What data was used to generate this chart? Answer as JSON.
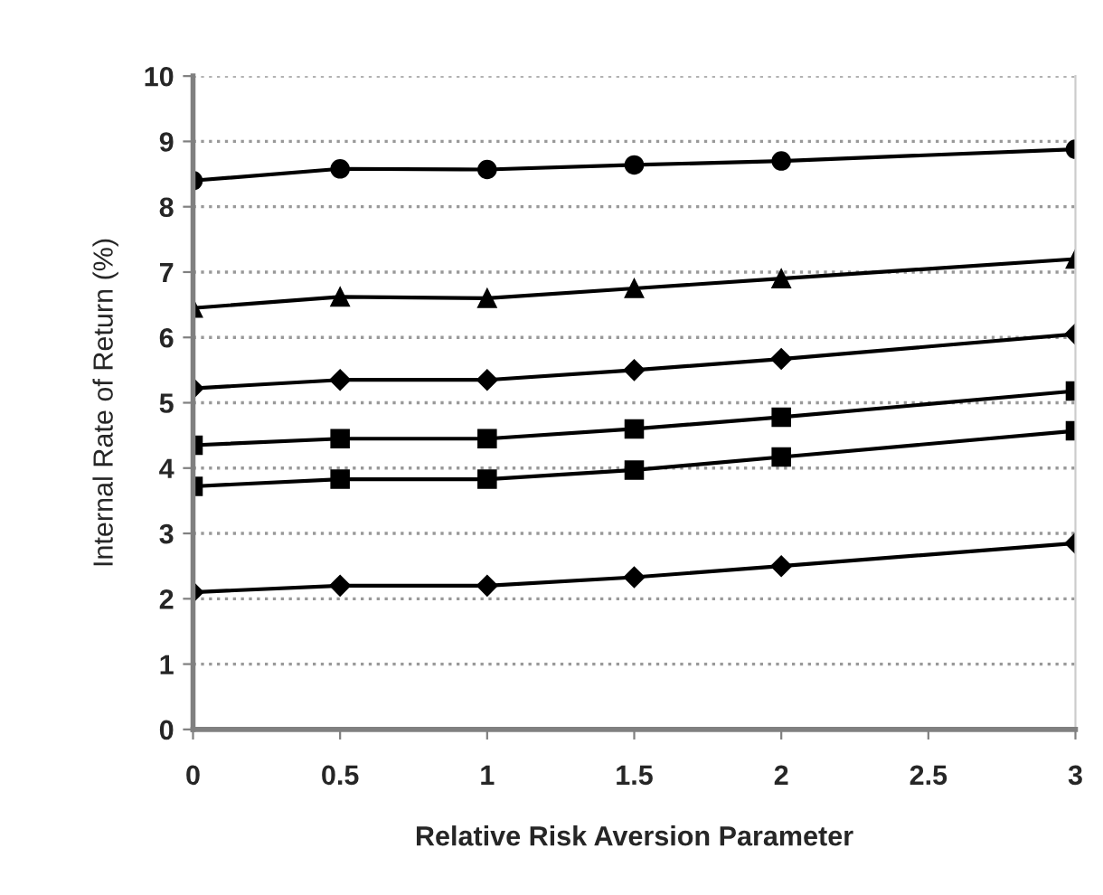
{
  "chart_data": {
    "type": "line",
    "xlabel": "Relative Risk Aversion Parameter",
    "ylabel": "Internal Rate of Return (%)",
    "x": [
      0,
      0.5,
      1,
      1.5,
      2,
      3
    ],
    "series": [
      {
        "color": "#000000",
        "marker": "circle",
        "values": [
          8.4,
          8.58,
          8.57,
          8.64,
          8.7,
          8.88
        ]
      },
      {
        "color": "#000000",
        "marker": "triangle",
        "values": [
          6.45,
          6.62,
          6.6,
          6.75,
          6.9,
          7.2
        ]
      },
      {
        "color": "#000000",
        "marker": "diamond",
        "values": [
          5.22,
          5.35,
          5.35,
          5.5,
          5.67,
          6.05
        ]
      },
      {
        "color": "#000000",
        "marker": "square",
        "values": [
          4.35,
          4.45,
          4.45,
          4.6,
          4.78,
          5.18
        ]
      },
      {
        "color": "#000000",
        "marker": "square",
        "values": [
          3.72,
          3.83,
          3.83,
          3.97,
          4.17,
          4.57
        ]
      },
      {
        "color": "#000000",
        "marker": "diamond",
        "values": [
          2.1,
          2.2,
          2.2,
          2.33,
          2.5,
          2.85
        ]
      }
    ],
    "xlim": [
      0,
      3
    ],
    "xticks": [
      0,
      0.5,
      1,
      1.5,
      2,
      2.5,
      3
    ],
    "ylim": [
      0,
      10
    ],
    "yticks": [
      0,
      1,
      2,
      3,
      4,
      5,
      6,
      7,
      8,
      9,
      10
    ],
    "grid": "y",
    "legend": false,
    "line_style": "solid"
  }
}
